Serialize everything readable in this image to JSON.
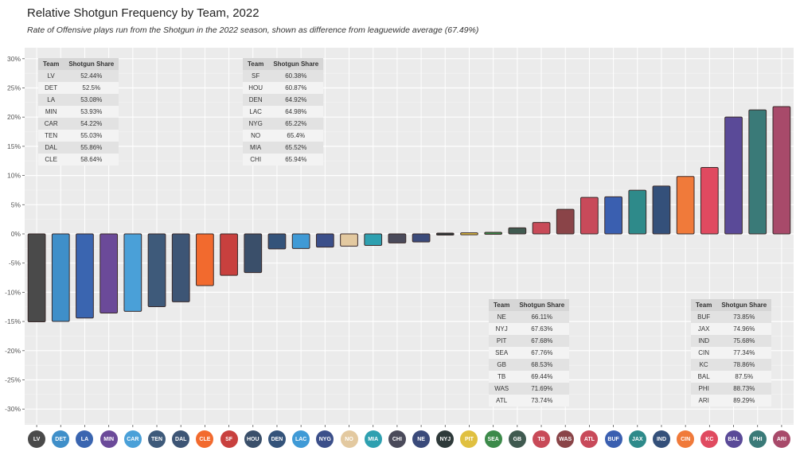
{
  "chart_data": {
    "type": "bar",
    "title": "Relative Shotgun Frequency by Team, 2022",
    "subtitle": "Rate of Offensive plays run from the Shotgun in the 2022 season, shown as difference from leaguewide average (67.49%)",
    "league_average": 67.49,
    "xlabel": "",
    "ylabel": "",
    "ylim": [
      -32,
      32
    ],
    "yticks": [
      30,
      25,
      20,
      15,
      10,
      5,
      0,
      -5,
      -10,
      -15,
      -20,
      -25,
      -30
    ],
    "ytick_labels": [
      "30%",
      "25%",
      "20%",
      "15%",
      "10%",
      "5%",
      "0%",
      "-5%",
      "-10%",
      "-15%",
      "-20%",
      "-25%",
      "-30%"
    ],
    "grid": true,
    "categories": [
      "LV",
      "DET",
      "LA",
      "MIN",
      "CAR",
      "TEN",
      "DAL",
      "CLE",
      "SF",
      "HOU",
      "DEN",
      "LAC",
      "NYG",
      "NO",
      "MIA",
      "CHI",
      "NE",
      "NYJ",
      "PIT",
      "SEA",
      "GB",
      "TB",
      "WAS",
      "ATL",
      "BUF",
      "JAX",
      "IND",
      "CIN",
      "KC",
      "BAL",
      "PHI",
      "ARI"
    ],
    "shotgun_share": [
      52.44,
      52.5,
      53.08,
      53.93,
      54.22,
      55.03,
      55.86,
      58.64,
      60.38,
      60.87,
      64.92,
      64.98,
      65.22,
      65.4,
      65.52,
      65.94,
      66.11,
      67.63,
      67.68,
      67.76,
      68.53,
      69.44,
      71.69,
      73.74,
      73.85,
      74.96,
      75.68,
      77.34,
      78.86,
      87.5,
      88.73,
      89.29
    ],
    "values": [
      -15.05,
      -14.99,
      -14.41,
      -13.56,
      -13.27,
      -12.46,
      -11.63,
      -8.85,
      -7.11,
      -6.62,
      -2.57,
      -2.51,
      -2.27,
      -2.09,
      -1.97,
      -1.55,
      -1.38,
      0.14,
      0.19,
      0.27,
      1.04,
      1.95,
      4.2,
      6.25,
      6.36,
      7.47,
      8.19,
      9.85,
      11.37,
      20.01,
      21.24,
      21.8
    ],
    "colors": [
      "#4a4a4a",
      "#3f8fc9",
      "#3a65b0",
      "#6b4a99",
      "#4aa0d8",
      "#3e5a7a",
      "#3d5575",
      "#f26a2e",
      "#c8403e",
      "#3a4f6a",
      "#34537a",
      "#3f9ad6",
      "#3b4f8a",
      "#e3c9a0",
      "#2ea0b0",
      "#4a4a5a",
      "#3a4a7a",
      "#2e3a3a",
      "#e0c040",
      "#3c8a4a",
      "#405a50",
      "#c84a58",
      "#8a4448",
      "#c84a5a",
      "#3a5fb0",
      "#2e8a8a",
      "#34507a",
      "#f07a3a",
      "#e04a60",
      "#5a4a98",
      "#3a7a78",
      "#a84a6a"
    ],
    "tables": [
      {
        "header": [
          "Team",
          "Shotgun Share"
        ],
        "rows": [
          [
            "LV",
            "52.44%"
          ],
          [
            "DET",
            "52.5%"
          ],
          [
            "LA",
            "53.08%"
          ],
          [
            "MIN",
            "53.93%"
          ],
          [
            "CAR",
            "54.22%"
          ],
          [
            "TEN",
            "55.03%"
          ],
          [
            "DAL",
            "55.86%"
          ],
          [
            "CLE",
            "58.64%"
          ]
        ]
      },
      {
        "header": [
          "Team",
          "Shotgun Share"
        ],
        "rows": [
          [
            "SF",
            "60.38%"
          ],
          [
            "HOU",
            "60.87%"
          ],
          [
            "DEN",
            "64.92%"
          ],
          [
            "LAC",
            "64.98%"
          ],
          [
            "NYG",
            "65.22%"
          ],
          [
            "NO",
            "65.4%"
          ],
          [
            "MIA",
            "65.52%"
          ],
          [
            "CHI",
            "65.94%"
          ]
        ]
      },
      {
        "header": [
          "Team",
          "Shotgun Share"
        ],
        "rows": [
          [
            "NE",
            "66.11%"
          ],
          [
            "NYJ",
            "67.63%"
          ],
          [
            "PIT",
            "67.68%"
          ],
          [
            "SEA",
            "67.76%"
          ],
          [
            "GB",
            "68.53%"
          ],
          [
            "TB",
            "69.44%"
          ],
          [
            "WAS",
            "71.69%"
          ],
          [
            "ATL",
            "73.74%"
          ]
        ]
      },
      {
        "header": [
          "Team",
          "Shotgun Share"
        ],
        "rows": [
          [
            "BUF",
            "73.85%"
          ],
          [
            "JAX",
            "74.96%"
          ],
          [
            "IND",
            "75.68%"
          ],
          [
            "CIN",
            "77.34%"
          ],
          [
            "KC",
            "78.86%"
          ],
          [
            "BAL",
            "87.5%"
          ],
          [
            "PHI",
            "88.73%"
          ],
          [
            "ARI",
            "89.29%"
          ]
        ]
      }
    ],
    "x_axis_labels": "team-logo-icons"
  }
}
